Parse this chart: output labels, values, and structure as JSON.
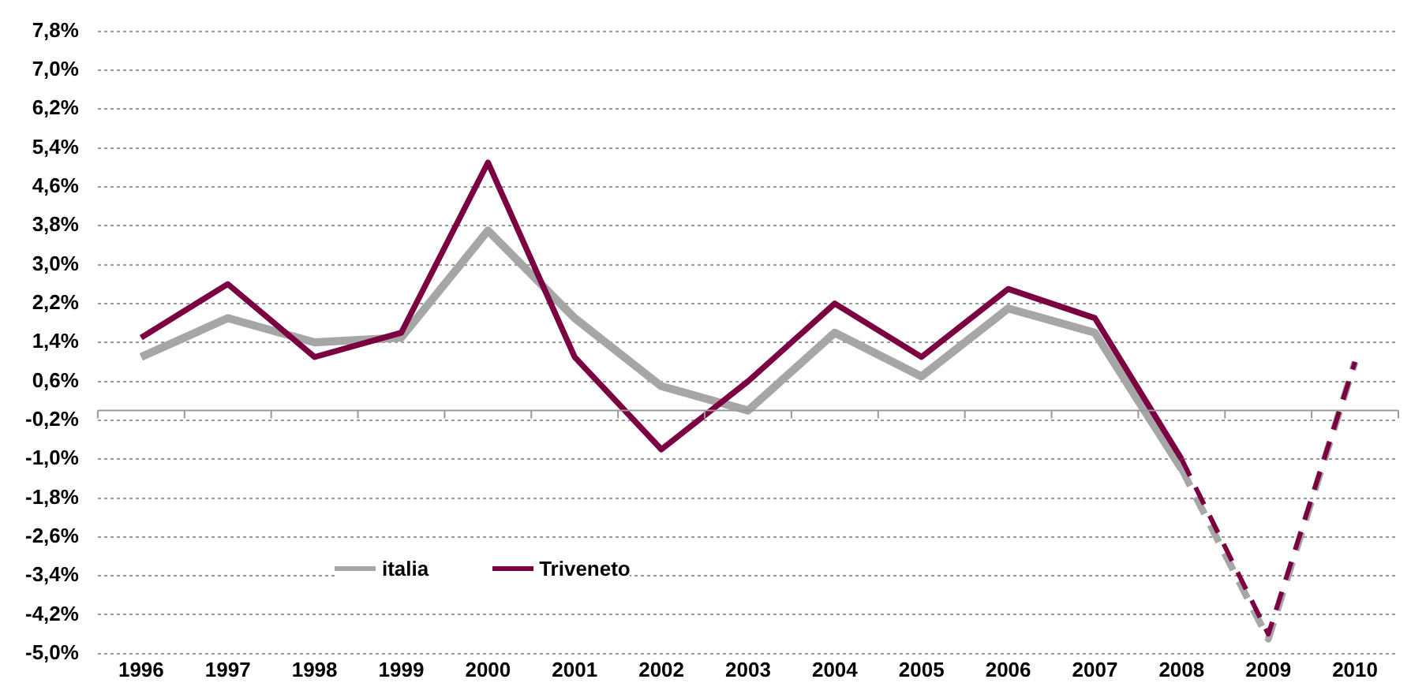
{
  "chart_data": {
    "type": "line",
    "categories": [
      "1996",
      "1997",
      "1998",
      "1999",
      "2000",
      "2001",
      "2002",
      "2003",
      "2004",
      "2005",
      "2006",
      "2007",
      "2008",
      "2009",
      "2010"
    ],
    "series": [
      {
        "name": "italia",
        "color": "#a6a6a6",
        "values": [
          1.1,
          1.9,
          1.4,
          1.5,
          3.7,
          1.9,
          0.5,
          0.0,
          1.6,
          0.7,
          2.1,
          1.6,
          -1.2,
          null,
          null
        ]
      },
      {
        "color": "#a6a6a6",
        "line_style": "dashed",
        "values": [
          null,
          null,
          null,
          null,
          null,
          null,
          null,
          null,
          null,
          null,
          null,
          null,
          -1.2,
          -4.7,
          1.0
        ]
      },
      {
        "name": "Triveneto",
        "color": "#7b0041",
        "values": [
          1.5,
          2.6,
          1.1,
          1.6,
          5.1,
          1.1,
          -0.8,
          0.6,
          2.2,
          1.1,
          2.5,
          1.9,
          -1.0,
          null,
          null
        ]
      },
      {
        "color": "#7b0041",
        "line_style": "dashed",
        "values": [
          null,
          null,
          null,
          null,
          null,
          null,
          null,
          null,
          null,
          null,
          null,
          null,
          -1.0,
          -4.6,
          1.0
        ]
      }
    ],
    "ylim": [
      -5.0,
      7.8
    ],
    "yticks": [
      {
        "value": 7.8,
        "label": "7,8%"
      },
      {
        "value": 7.0,
        "label": "7,0%"
      },
      {
        "value": 6.2,
        "label": "6,2%"
      },
      {
        "value": 5.4,
        "label": "5,4%"
      },
      {
        "value": 4.6,
        "label": "4,6%"
      },
      {
        "value": 3.8,
        "label": "3,8%"
      },
      {
        "value": 3.0,
        "label": "3,0%"
      },
      {
        "value": 2.2,
        "label": "2,2%"
      },
      {
        "value": 1.4,
        "label": "1,4%"
      },
      {
        "value": 0.6,
        "label": "0,6%"
      },
      {
        "value": -0.2,
        "label": "-0,2%"
      },
      {
        "value": -1.0,
        "label": "-1,0%"
      },
      {
        "value": -1.8,
        "label": "-1,8%"
      },
      {
        "value": -2.6,
        "label": "-2,6%"
      },
      {
        "value": -3.4,
        "label": "-3,4%"
      },
      {
        "value": -4.2,
        "label": "-4,2%"
      },
      {
        "value": -5.0,
        "label": "-5,0%"
      }
    ],
    "grid": "y",
    "legend": "bottom left",
    "marker": "none",
    "line_style": "solid"
  }
}
